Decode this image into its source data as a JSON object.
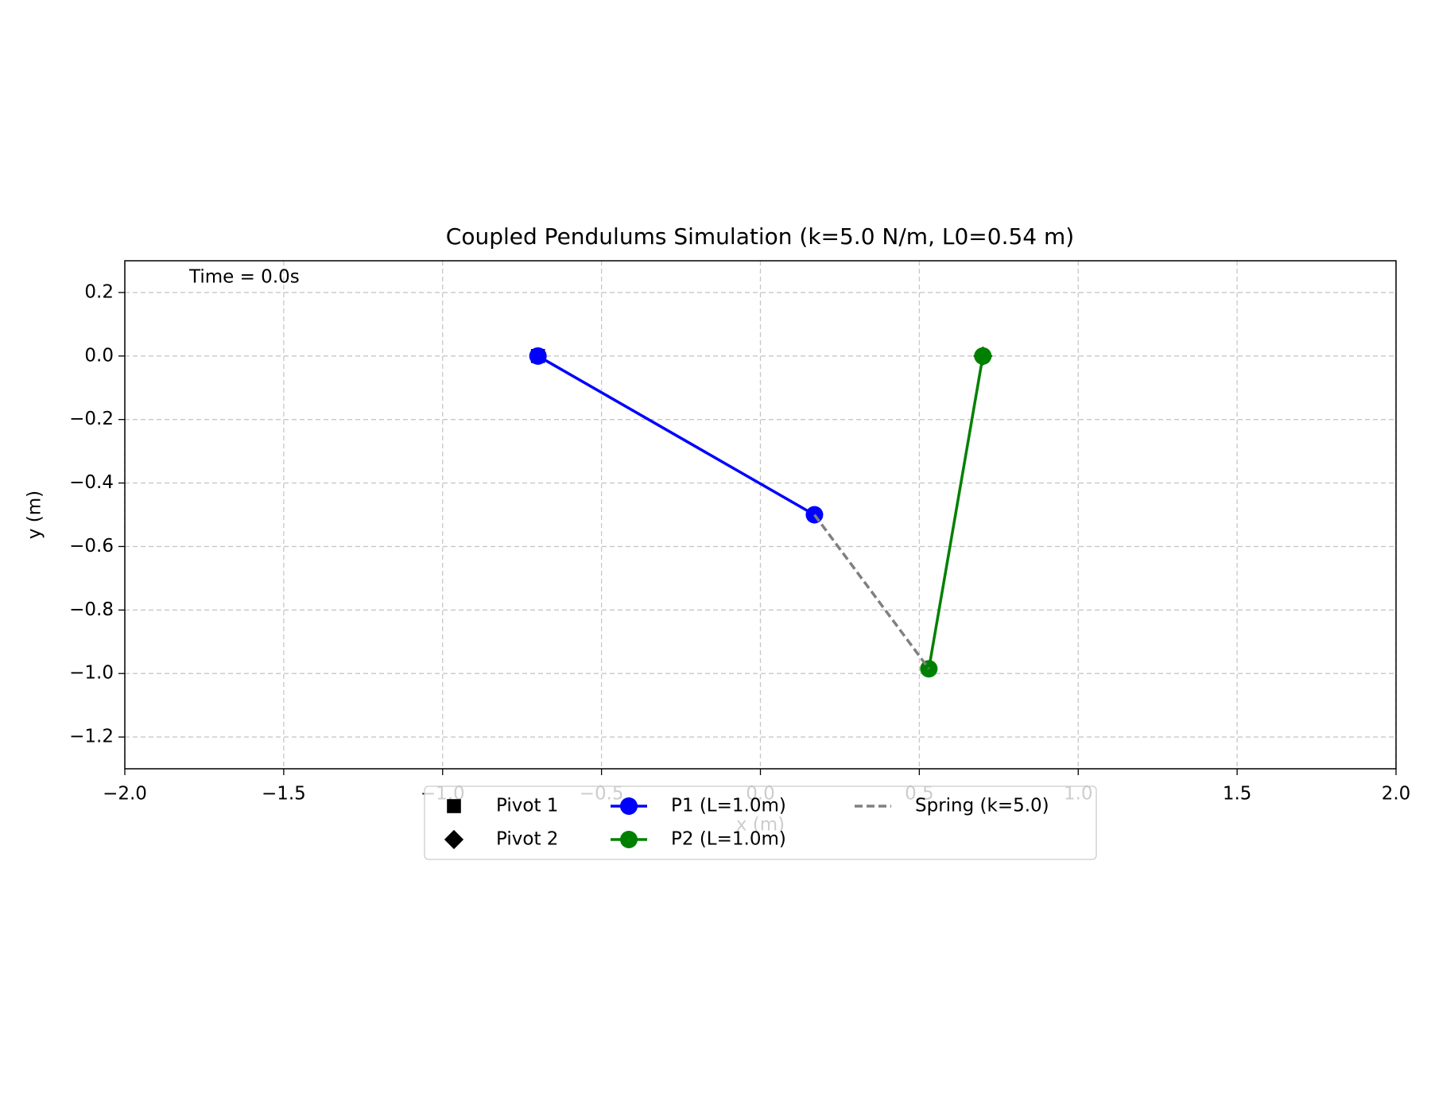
{
  "chart_data": {
    "type": "line",
    "title": "Coupled Pendulums Simulation (k=5.0 N/m, L0=0.54 m)",
    "xlabel": "x (m)",
    "ylabel": "y (m)",
    "annotation": "Time = 0.0s",
    "xlim": [
      -2,
      2
    ],
    "ylim": [
      -1.3,
      0.3
    ],
    "xticks": [
      {
        "value": -2,
        "label": "−2.0"
      },
      {
        "value": -1.5,
        "label": "−1.5"
      },
      {
        "value": -1,
        "label": "−1.0"
      },
      {
        "value": -0.5,
        "label": "−0.5"
      },
      {
        "value": 0,
        "label": "0.0"
      },
      {
        "value": 0.5,
        "label": "0.5"
      },
      {
        "value": 1,
        "label": "1.0"
      },
      {
        "value": 1.5,
        "label": "1.5"
      },
      {
        "value": 2,
        "label": "2.0"
      }
    ],
    "yticks": [
      0.2,
      {
        "value": 0,
        "label": "0.0"
      },
      {
        "value": -0.2,
        "label": "−0.2"
      },
      {
        "value": -0.4,
        "label": "−0.4"
      },
      {
        "value": -0.6,
        "label": "−0.6"
      },
      {
        "value": -0.8,
        "label": "−0.8"
      },
      {
        "value": -1,
        "label": "−1.0"
      },
      {
        "value": -1.2,
        "label": "−1.2"
      }
    ],
    "grid": true,
    "legend": "below",
    "legend_columns": 3,
    "series": [
      {
        "name": "Pivot 1",
        "color": "#000000",
        "marker": "square",
        "line": "none",
        "x": [
          -0.7
        ],
        "y": [
          0
        ]
      },
      {
        "name": "Pivot 2",
        "color": "#000000",
        "marker": "diamond",
        "line": "none",
        "x": [
          0.7
        ],
        "y": [
          0
        ]
      },
      {
        "name": "P1 (L=1.0m)",
        "color": "#0000ff",
        "marker": "circle",
        "line": "solid",
        "x": [
          -0.7,
          0.17
        ],
        "y": [
          0,
          -0.5
        ]
      },
      {
        "name": "P2 (L=1.0m)",
        "color": "#008000",
        "marker": "circle",
        "line": "solid",
        "x": [
          0.7,
          0.53
        ],
        "y": [
          0,
          -0.985
        ]
      },
      {
        "name": "Spring (k=5.0)",
        "color": "#808080",
        "marker": "none",
        "line": "dashed",
        "x": [
          0.17,
          0.53
        ],
        "y": [
          -0.5,
          -0.985
        ]
      }
    ]
  }
}
